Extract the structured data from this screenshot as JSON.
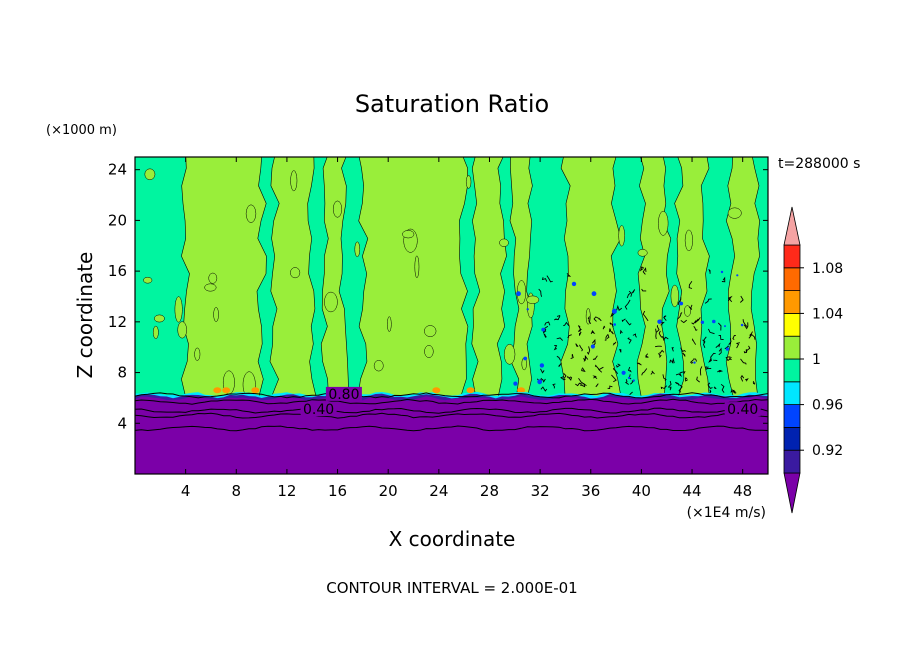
{
  "chart_data": {
    "type": "contour",
    "title": "Saturation Ratio",
    "xlabel": "X coordinate",
    "ylabel": "Z coordinate",
    "x_unit": "(×1E4 m/s)",
    "y_unit": "(×1000 m)",
    "time_label": "t=288000 s",
    "footer": "CONTOUR INTERVAL = 2.000E-01",
    "xlim": [
      0,
      50
    ],
    "ylim": [
      0,
      25
    ],
    "x_ticks": [
      4,
      8,
      12,
      16,
      20,
      24,
      28,
      32,
      36,
      40,
      44,
      48
    ],
    "y_ticks": [
      4,
      8,
      12,
      16,
      20,
      24
    ],
    "contour_labels": [
      {
        "text": "0.80",
        "x": 16.5,
        "y": 6.0
      },
      {
        "text": "0.40",
        "x": 14.5,
        "y": 4.8
      },
      {
        "text": "0.40",
        "x": 48.0,
        "y": 4.8
      }
    ],
    "colorbar": {
      "levels": [
        0.92,
        0.96,
        1,
        1.04,
        1.08
      ],
      "tick_labels": [
        "0.92",
        "0.96",
        "1",
        "1.04",
        "1.08"
      ],
      "colors": [
        "#7b00a8",
        "#3a1aa0",
        "#0022b0",
        "#0044ff",
        "#00e6ff",
        "#00f5a0",
        "#99ee3a",
        "#ffff00",
        "#ff9900",
        "#ff6a00",
        "#ff2a1a",
        "#f5a3a3"
      ]
    },
    "regions": {
      "dry_layer_top_z": 6.3,
      "moist_color": "#00f5a0",
      "saturated_color": "#99ee3a",
      "dry_color": "#7b00a8",
      "saturated_x_bands": [
        [
          4,
          10
        ],
        [
          11,
          14
        ],
        [
          15,
          16.5
        ],
        [
          18,
          26
        ],
        [
          27,
          29
        ],
        [
          30,
          31
        ],
        [
          34,
          38
        ],
        [
          40,
          42
        ],
        [
          43,
          45
        ],
        [
          47,
          49
        ]
      ]
    }
  }
}
